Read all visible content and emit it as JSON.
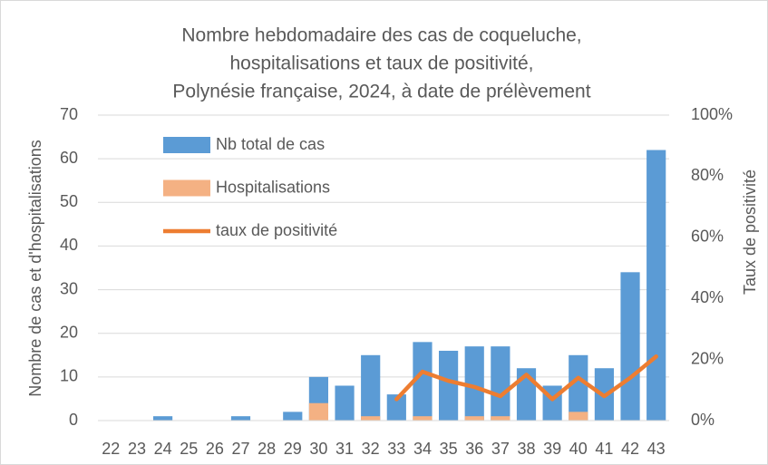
{
  "chart_data": {
    "type": "bar",
    "title": [
      "Nombre hebdomadaire des cas de coqueluche,",
      "hospitalisations et taux de positivité,",
      "Polynésie française, 2024, à date de prélèvement"
    ],
    "y_label": "Nombre de cas et d'hospitalisations",
    "y2_label": "Taux de positivité",
    "categories": [
      "22",
      "23",
      "24",
      "25",
      "26",
      "27",
      "28",
      "29",
      "30",
      "31",
      "32",
      "33",
      "34",
      "35",
      "36",
      "37",
      "38",
      "39",
      "40",
      "41",
      "42",
      "43"
    ],
    "series": [
      {
        "name": "Nb total de cas",
        "type": "bar",
        "color": "#5b9bd5",
        "values": [
          0,
          0,
          1,
          0,
          0,
          1,
          0,
          2,
          10,
          8,
          15,
          6,
          18,
          16,
          17,
          17,
          12,
          8,
          15,
          12,
          34,
          62
        ]
      },
      {
        "name": "Hospitalisations",
        "type": "bar",
        "color": "#f4b183",
        "values": [
          0,
          0,
          0,
          0,
          0,
          0,
          0,
          0,
          4,
          0,
          1,
          0,
          1,
          0,
          1,
          1,
          0,
          0,
          2,
          0,
          0,
          0
        ]
      },
      {
        "name": "taux de positivité",
        "type": "line",
        "axis": "y2",
        "color": "#ed7d31",
        "values": [
          null,
          null,
          null,
          null,
          null,
          null,
          null,
          null,
          null,
          null,
          null,
          7,
          16,
          13,
          11,
          8,
          15,
          7,
          14,
          8,
          14,
          21
        ]
      }
    ],
    "ylim": [
      0,
      70
    ],
    "yticks": [
      0,
      10,
      20,
      30,
      40,
      50,
      60,
      70
    ],
    "y2lim": [
      0,
      100
    ],
    "y2ticks": [
      {
        "value": 0,
        "label": "0%"
      },
      {
        "value": 20,
        "label": "20%"
      },
      {
        "value": 40,
        "label": "40%"
      },
      {
        "value": 60,
        "label": "60%"
      },
      {
        "value": 80,
        "label": "80%"
      },
      {
        "value": 100,
        "label": "100%"
      }
    ],
    "grid": true,
    "legend": "upper left"
  }
}
